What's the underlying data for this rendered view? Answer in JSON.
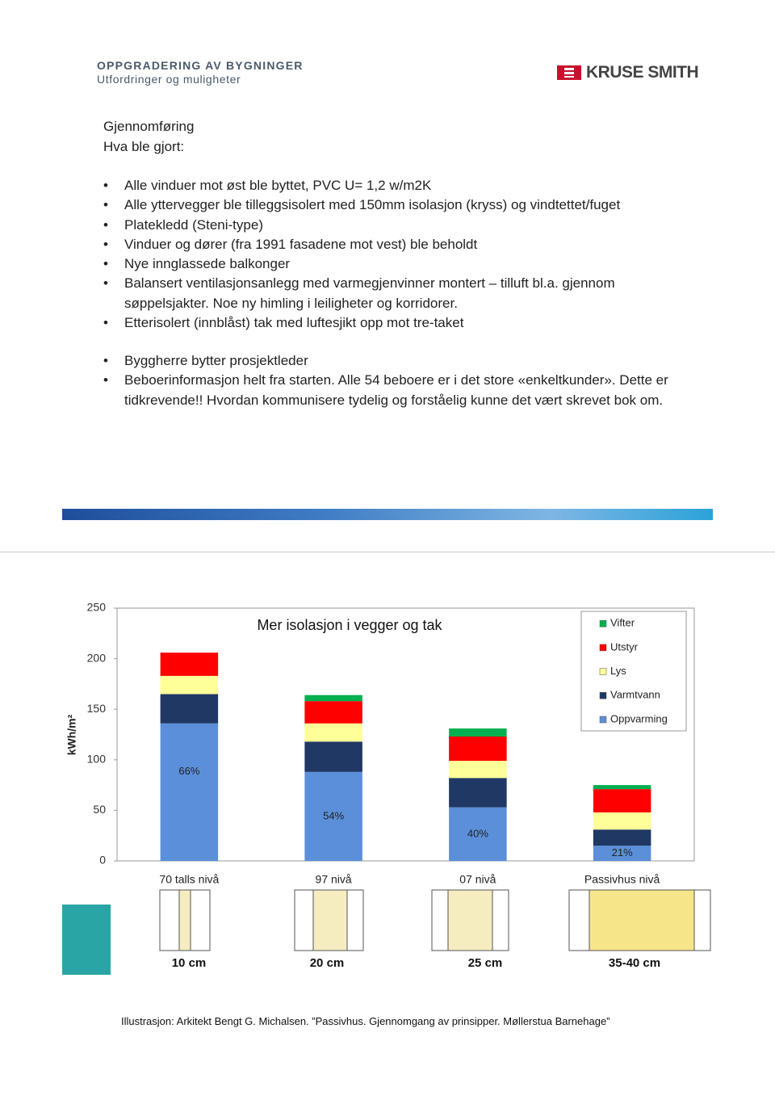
{
  "header": {
    "title": "OPPGRADERING AV BYGNINGER",
    "subtitle": "Utfordringer og muligheter",
    "logo": "KRUSE SMITH"
  },
  "body": {
    "heading": "Gjennomføring",
    "subheading": "Hva ble gjort:",
    "bullets": [
      "Alle vinduer mot øst ble byttet, PVC U= 1,2 w/m2K",
      "Alle yttervegger ble tilleggsisolert med 150mm isolasjon (kryss) og vindtettet/fuget",
      "Platekledd (Steni-type)",
      "Vinduer og dører (fra 1991 fasadene mot vest) ble beholdt",
      "Nye innglassede balkonger",
      "Balansert ventilasjonsanlegg med varmegjenvinner montert – tilluft bl.a. gjennom søppelsjakter. Noe ny himling i leiligheter og korridorer.",
      "Etterisolert (innblåst) tak med luftesjikt opp mot tre-taket"
    ],
    "bullets2": [
      "Byggherre bytter prosjektleder",
      "Beboerinformasjon helt fra starten. Alle 54 beboere er i det store «enkeltkunder». Dette er tidkrevende!! Hvordan kommunisere tydelig og forståelig kunne det vært skrevet bok om."
    ]
  },
  "chart_data": {
    "type": "stacked-bar",
    "title": "Mer isolasjon i vegger og tak",
    "y_label": "kWh/m²",
    "categories": [
      "70 talls nivå",
      "97 nivå",
      "07 nivå",
      "Passivhus nivå"
    ],
    "series": [
      {
        "name": "Oppvarming",
        "color": "#5b8fd9",
        "values": [
          136,
          88,
          53,
          15
        ],
        "value_labels": [
          "66%",
          "54%",
          "40%",
          "21%"
        ]
      },
      {
        "name": "Varmtvann",
        "color": "#1f3864",
        "values": [
          29,
          30,
          29,
          16
        ]
      },
      {
        "name": "Lys",
        "color": "#ffff99",
        "values": [
          18,
          18,
          17,
          17
        ]
      },
      {
        "name": "Utstyr",
        "color": "#ff0000",
        "values": [
          23,
          22,
          24,
          23
        ]
      },
      {
        "name": "Vifter",
        "color": "#00b050",
        "values": [
          0,
          6,
          8,
          4
        ]
      }
    ],
    "ylim": [
      0,
      250
    ],
    "yticks": [
      0,
      50,
      100,
      150,
      200,
      250
    ],
    "grid": false,
    "legend": "top-right",
    "illustration_labels": [
      "10 cm",
      "20 cm",
      "25 cm",
      "35-40 cm"
    ]
  },
  "caption": "Illustrasjon: Arkitekt Bengt G. Michalsen. ”Passivhus. Gjennomgang av prinsipper. Møllerstua Barnehage”"
}
